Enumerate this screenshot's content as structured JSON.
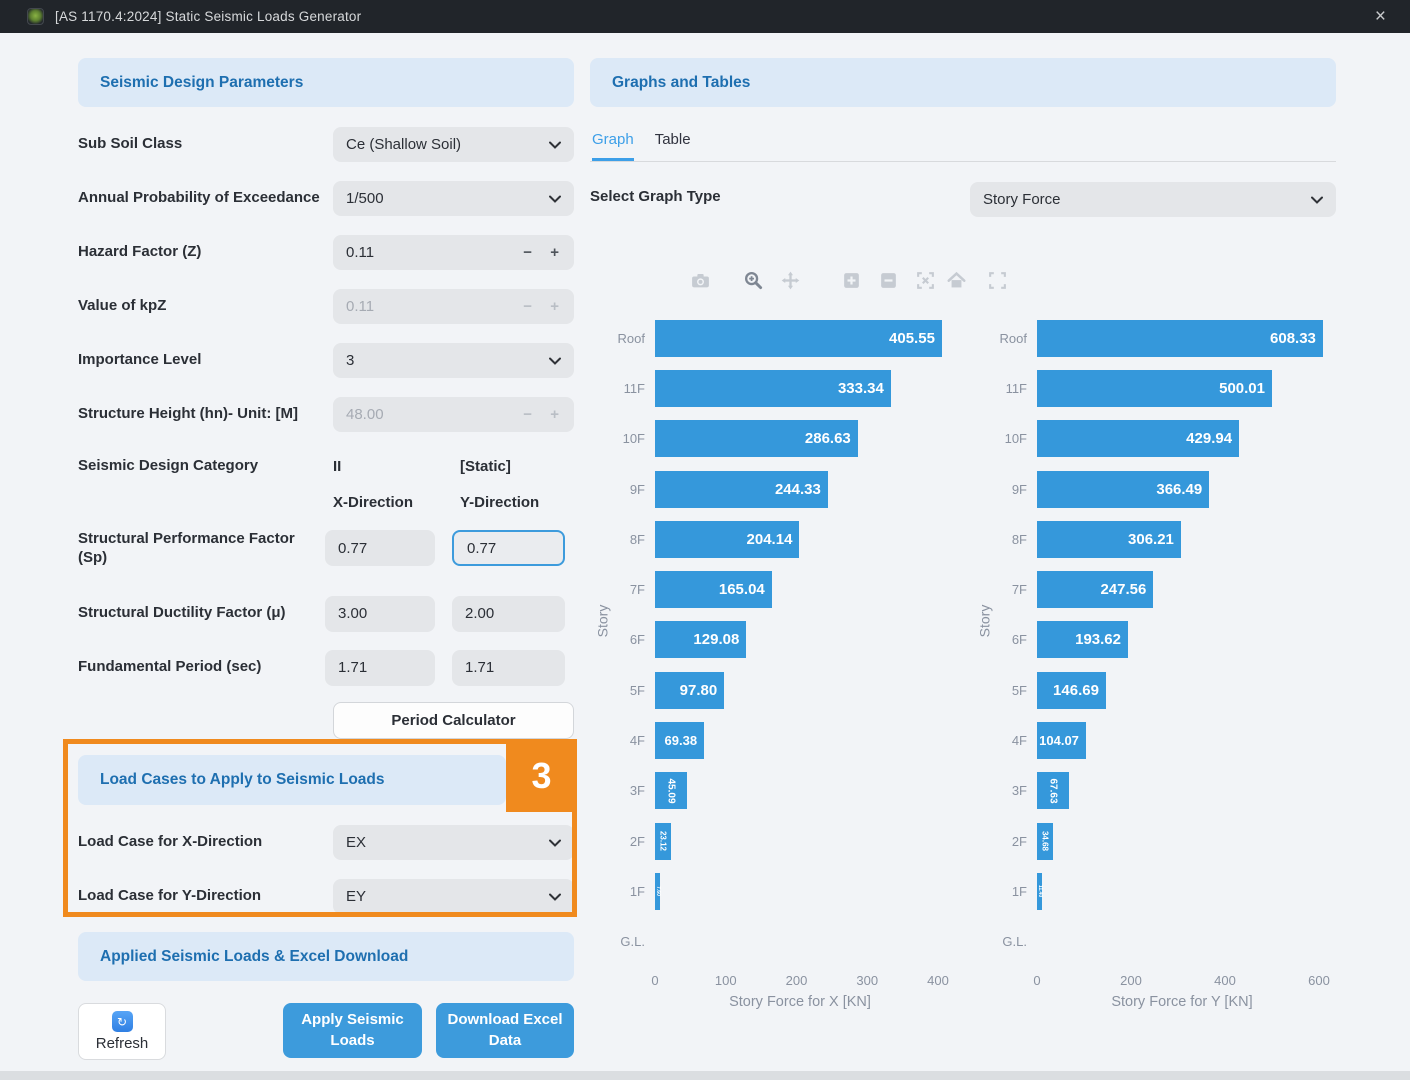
{
  "window": {
    "title": "[AS 1170.4:2024] Static Seismic Loads Generator",
    "close_label": "×"
  },
  "colors": {
    "titlebar_bg": "#21252a",
    "header_bg": "#dce9f7",
    "header_text_blue": "#1e6fb0",
    "bar_blue": "#3598db",
    "tab_active_blue": "#3d9fe8",
    "button_blue": "#3d9bdc",
    "annotation_orange": "#f08a1e",
    "focus_border_blue": "#3d9bdc"
  },
  "left_panel": {
    "header": "Seismic Design Parameters",
    "fields": [
      {
        "label": "Sub Soil Class",
        "type": "select",
        "value": "Ce (Shallow Soil)",
        "disabled": false
      },
      {
        "label": "Annual Probability of Exceedance",
        "type": "select",
        "value": "1/500",
        "disabled": false
      },
      {
        "label": "Hazard Factor (Z)",
        "type": "stepper",
        "value": "0.11",
        "disabled": false
      },
      {
        "label": "Value of kpZ",
        "type": "stepper",
        "value": "0.11",
        "disabled": true
      },
      {
        "label": "Importance Level",
        "type": "select",
        "value": "3",
        "disabled": false
      },
      {
        "label": "Structure Height (hn)- Unit: [M]",
        "type": "stepper",
        "value": "48.00",
        "disabled": true
      }
    ],
    "category": {
      "label": "Seismic Design Category",
      "value": "II",
      "mode": "[Static]"
    },
    "direction_headers": {
      "x": "X-Direction",
      "y": "Y-Direction"
    },
    "dual_fields": [
      {
        "label": "Structural Performance Factor (Sp)",
        "x": "0.77",
        "y": "0.77",
        "x_disabled": true,
        "y_focused": true
      },
      {
        "label": "Structural Ductility Factor (μ)",
        "x": "3.00",
        "y": "2.00",
        "x_disabled": true,
        "y_focused": false
      },
      {
        "label": "Fundamental Period (sec)",
        "x": "1.71",
        "y": "1.71",
        "x_disabled": true,
        "y_focused": false
      }
    ],
    "period_calculator_label": "Period Calculator",
    "load_cases": {
      "header": "Load Cases to Apply to Seismic Loads",
      "annotation_number": "3",
      "fields": [
        {
          "label": "Load Case for X-Direction",
          "type": "select",
          "value": "EX",
          "disabled": false
        },
        {
          "label": "Load Case for Y-Direction",
          "type": "select",
          "value": "EY",
          "disabled": false
        }
      ]
    },
    "download_section": {
      "header": "Applied Seismic Loads & Excel Download",
      "refresh_label": "Refresh",
      "apply_label": "Apply Seismic Loads",
      "download_label": "Download Excel Data"
    }
  },
  "right_panel": {
    "header": "Graphs and Tables",
    "tabs": [
      {
        "label": "Graph",
        "active": true
      },
      {
        "label": "Table",
        "active": false
      }
    ],
    "graph_type": {
      "label": "Select Graph Type",
      "value": "Story Force"
    },
    "toolbar_icons": [
      "camera-icon",
      "zoom-icon",
      "pan-icon",
      "zoom-in-icon",
      "zoom-out-icon",
      "autoscale-icon",
      "home-icon",
      "fullscreen-icon"
    ]
  },
  "chart_data": [
    {
      "type": "bar",
      "orientation": "horizontal",
      "categories": [
        "Roof",
        "11F",
        "10F",
        "9F",
        "8F",
        "7F",
        "6F",
        "5F",
        "4F",
        "3F",
        "2F",
        "1F",
        "G.L."
      ],
      "values": [
        405.55,
        333.34,
        286.63,
        244.33,
        204.14,
        165.04,
        129.08,
        97.8,
        69.38,
        45.09,
        23.12,
        7.6,
        null
      ],
      "bar_labels": [
        "405.55",
        "333.34",
        "286.63",
        "244.33",
        "204.14",
        "165.04",
        "129.08",
        "97.80",
        "69.38",
        "45.09",
        "23.12",
        "7.60",
        ""
      ],
      "xlabel": "Story Force for X [KN]",
      "ylabel": "Story",
      "xticks": [
        "0",
        "100",
        "200",
        "300",
        "400"
      ],
      "xtick_values": [
        0,
        100,
        200,
        300,
        400
      ],
      "xmax": 400,
      "bar_color": "#3598db",
      "grid": false,
      "legend": false
    },
    {
      "type": "bar",
      "orientation": "horizontal",
      "categories": [
        "Roof",
        "11F",
        "10F",
        "9F",
        "8F",
        "7F",
        "6F",
        "5F",
        "4F",
        "3F",
        "2F",
        "1F",
        "G.L."
      ],
      "values": [
        608.33,
        500.01,
        429.94,
        366.49,
        306.21,
        247.56,
        193.62,
        146.69,
        104.07,
        67.63,
        34.68,
        11.4,
        null
      ],
      "bar_labels": [
        "608.33",
        "500.01",
        "429.94",
        "366.49",
        "306.21",
        "247.56",
        "193.62",
        "146.69",
        "104.07",
        "67.63",
        "34.68",
        "11.40",
        ""
      ],
      "xlabel": "Story Force for Y [KN]",
      "ylabel": "Story",
      "xticks": [
        "0",
        "200",
        "400",
        "600"
      ],
      "xtick_values": [
        0,
        200,
        400,
        600
      ],
      "xmax": 600,
      "bar_color": "#3598db",
      "grid": false,
      "legend": false
    }
  ]
}
